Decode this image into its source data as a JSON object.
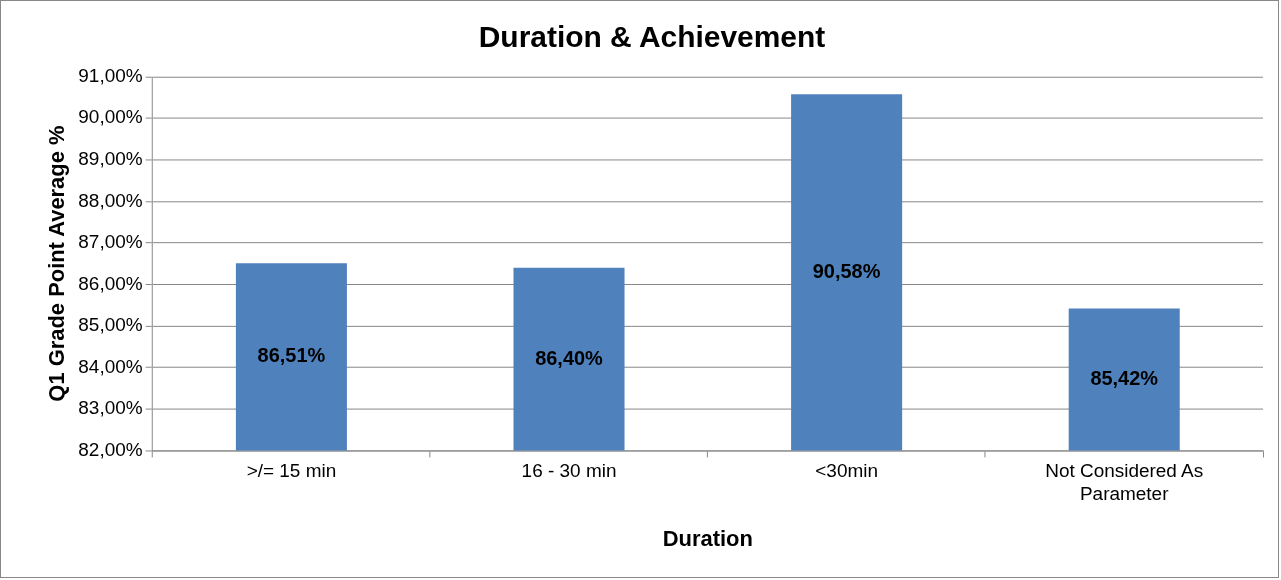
{
  "chart_data": {
    "type": "bar",
    "title": "Duration & Achievement",
    "xlabel": "Duration",
    "ylabel": "Q1 Grade Point Average %",
    "categories": [
      ">/= 15 min",
      "16 - 30 min",
      "<30min",
      "Not Considered As Parameter"
    ],
    "values": [
      86.51,
      86.4,
      90.58,
      85.42
    ],
    "value_labels": [
      "86,51%",
      "86,40%",
      "90,58%",
      "85,42%"
    ],
    "color": "#4f81bd",
    "ylim": [
      82,
      91
    ],
    "yticks": [
      {
        "value": 82,
        "label": "82,00%"
      },
      {
        "value": 83,
        "label": "83,00%"
      },
      {
        "value": 84,
        "label": "84,00%"
      },
      {
        "value": 85,
        "label": "85,00%"
      },
      {
        "value": 86,
        "label": "86,00%"
      },
      {
        "value": 87,
        "label": "87,00%"
      },
      {
        "value": 88,
        "label": "88,00%"
      },
      {
        "value": 89,
        "label": "89,00%"
      },
      {
        "value": 90,
        "label": "90,00%"
      },
      {
        "value": 91,
        "label": "91,00%"
      }
    ],
    "grid": "y",
    "legend": false
  }
}
